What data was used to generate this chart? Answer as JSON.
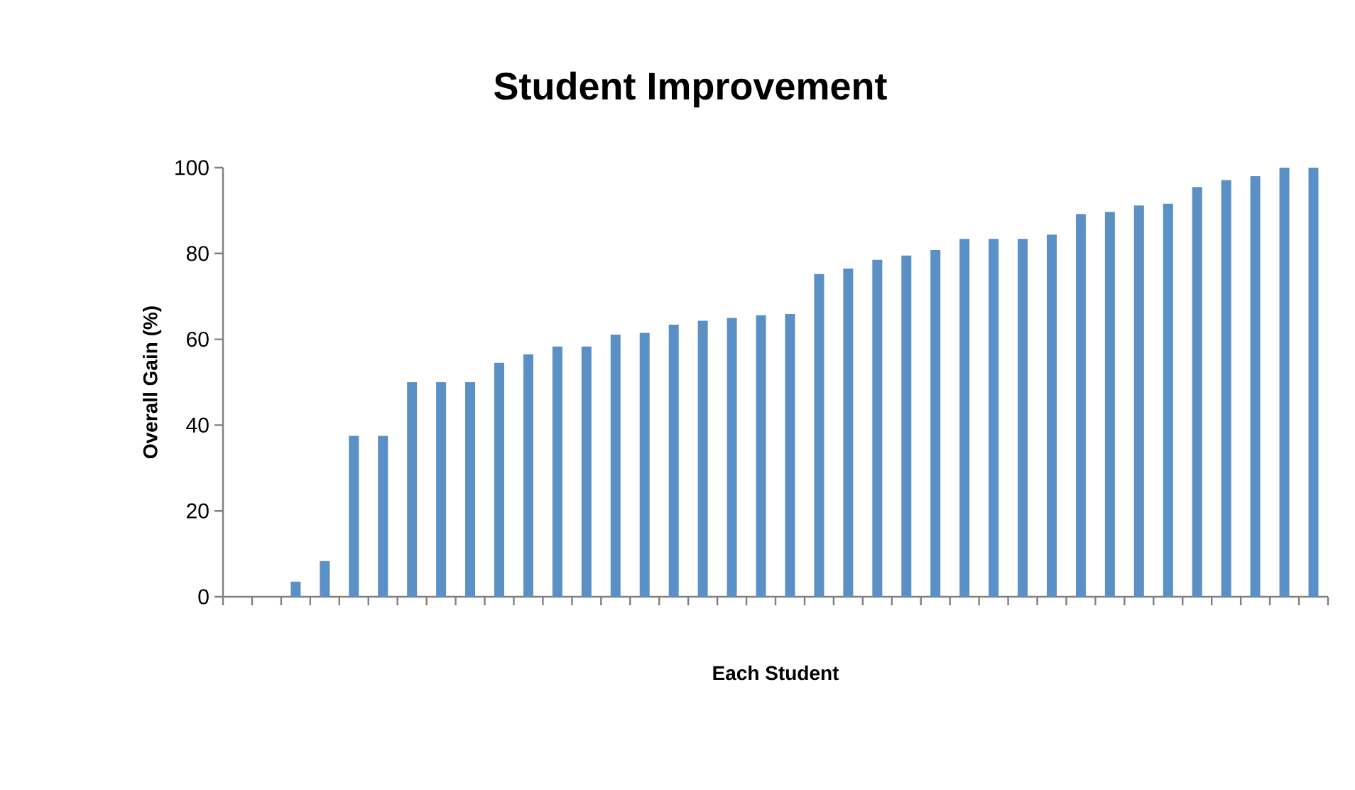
{
  "chart_data": {
    "type": "bar",
    "title": "Student Improvement",
    "xlabel": "Each Student",
    "ylabel": "Overall Gain (%)",
    "categories": [
      null,
      null,
      null,
      null,
      null,
      null,
      null,
      null,
      null,
      null,
      null,
      null,
      null,
      null,
      null,
      null,
      null,
      null,
      null,
      null,
      null,
      null,
      null,
      null,
      null,
      null,
      null,
      null,
      null,
      null,
      null,
      null,
      null,
      null,
      null,
      null,
      null,
      null
    ],
    "values": [
      0,
      0,
      3.5,
      8.3,
      37.5,
      37.5,
      50,
      50,
      50,
      54.5,
      56.5,
      58.3,
      58.3,
      61.1,
      61.5,
      63.4,
      64.3,
      65,
      65.6,
      65.9,
      75.2,
      76.5,
      78.5,
      79.5,
      80.8,
      83.4,
      83.4,
      83.4,
      84.4,
      89.2,
      89.7,
      91.2,
      91.6,
      95.5,
      97.1,
      98,
      100,
      100
    ],
    "color": "#5b90c6",
    "ylim": [
      0,
      100
    ],
    "yticks": [
      0,
      20,
      40,
      60,
      80,
      100
    ],
    "tick_labels": "y"
  }
}
